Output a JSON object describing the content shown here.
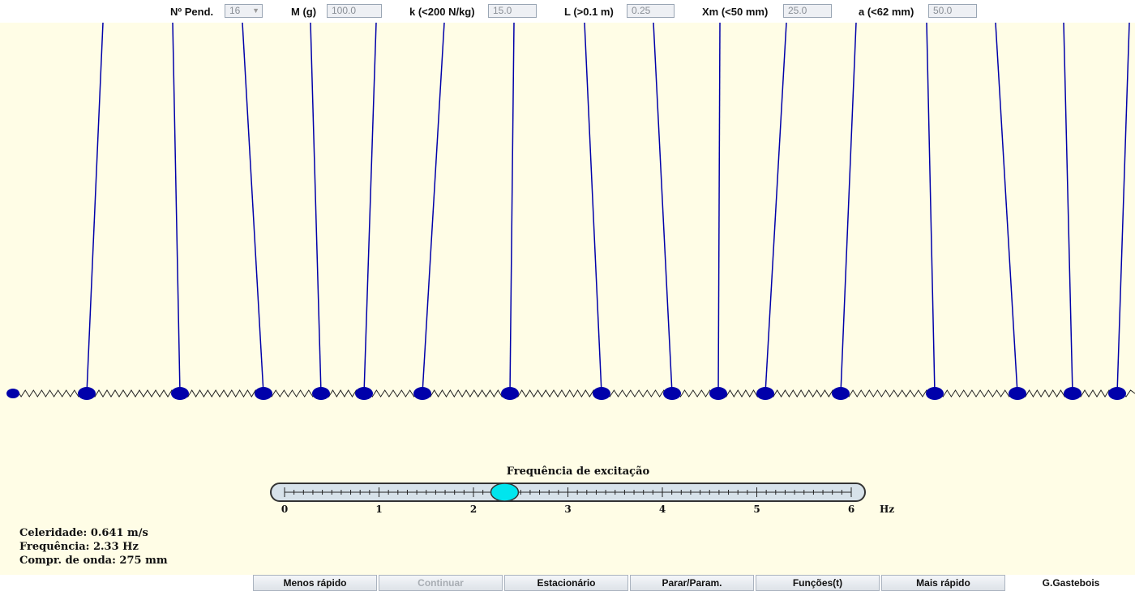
{
  "params": {
    "n_pend_label": "Nº Pend.",
    "n_pend_value": "16",
    "mass_label": "M (g)",
    "mass_value": "100.0",
    "k_label": "k (<200 N/kg)",
    "k_value": "15.0",
    "length_label": "L (>0.1 m)",
    "length_value": "0.25",
    "xm_label": "Xm (<50 mm)",
    "xm_value": "25.0",
    "a_label": "a (<62 mm)",
    "a_value": "50.0"
  },
  "slider": {
    "title": "Frequência de excitação",
    "min": 0,
    "max": 6,
    "value": 2.33,
    "unit": "Hz",
    "tick_labels": [
      "0",
      "1",
      "2",
      "3",
      "4",
      "5",
      "6"
    ],
    "minor_ticks_per_unit": 10
  },
  "info": {
    "celerity": "Celeridade: 0.641 m/s",
    "frequency": "Frequência: 2.33 Hz",
    "wavelength": "Compr. de onda: 275 mm"
  },
  "buttons": {
    "slower": "Menos rápido",
    "continue": "Continuar",
    "stationary": "Estacionário",
    "stop": "Parar/Param.",
    "functions": "Funções(t)",
    "faster": "Mais rápido",
    "credit": "G.Gastebois"
  },
  "colors": {
    "background": "#fffde6",
    "pendulum": "#0000aa",
    "knob": "#00e5ee"
  }
}
